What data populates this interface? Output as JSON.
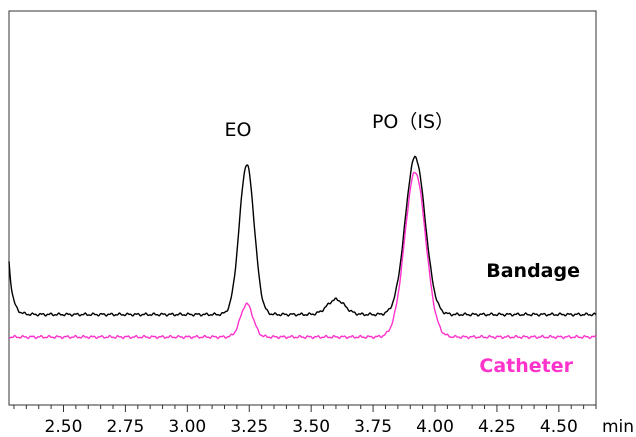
{
  "chart_data": {
    "type": "line",
    "xlabel": "min",
    "ylabel": "",
    "xlim": [
      2.28,
      4.65
    ],
    "x_major_ticks": [
      "2.50",
      "2.75",
      "3.00",
      "3.25",
      "3.50",
      "3.75",
      "4.00",
      "4.25",
      "4.50"
    ],
    "x_minor_step": 0.05,
    "grid": false,
    "annotations": [
      {
        "text": "EO",
        "x": 3.25
      },
      {
        "text": "PO（IS）",
        "x": 3.92
      }
    ],
    "series": [
      {
        "name": "Bandage",
        "color": "#000000",
        "baseline": 0.15,
        "start_transient": true,
        "peaks": [
          {
            "x": 3.24,
            "height": 1.0,
            "width": 0.03
          },
          {
            "x": 3.6,
            "height": 0.1,
            "width": 0.035
          },
          {
            "x": 3.92,
            "height": 1.05,
            "width": 0.04
          }
        ]
      },
      {
        "name": "Catheter",
        "color": "#ff33cc",
        "baseline": 0.0,
        "start_transient": false,
        "peaks": [
          {
            "x": 3.24,
            "height": 0.22,
            "width": 0.025
          },
          {
            "x": 3.92,
            "height": 1.1,
            "width": 0.042
          }
        ]
      }
    ]
  }
}
